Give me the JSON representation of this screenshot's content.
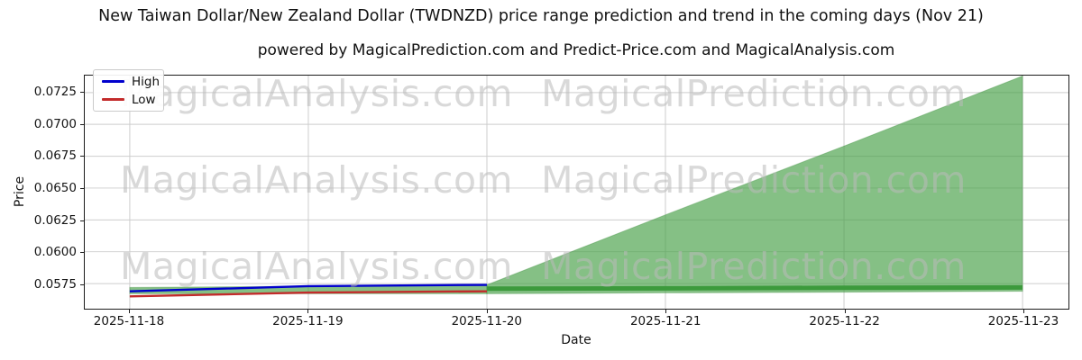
{
  "title": "New Taiwan Dollar/New Zealand Dollar (TWDNZD) price range prediction and trend in the coming days (Nov 21)",
  "subtitle": "powered by MagicalPrediction.com and Predict-Price.com and MagicalAnalysis.com",
  "watermarks": {
    "left_text": "MagicalAnalysis.com",
    "right_text": "MagicalPrediction.com",
    "rows": 3
  },
  "legend": {
    "items": [
      {
        "label": "High",
        "color": "#0000cd"
      },
      {
        "label": "Low",
        "color": "#c32b2b"
      }
    ]
  },
  "axes": {
    "x_label": "Date",
    "y_label": "Price",
    "x_ticks": [
      "2025-11-18",
      "2025-11-19",
      "2025-11-20",
      "2025-11-21",
      "2025-11-22",
      "2025-11-23"
    ],
    "y_ticks": [
      "0.0575",
      "0.0600",
      "0.0625",
      "0.0650",
      "0.0675",
      "0.0700",
      "0.0725"
    ]
  },
  "chart_data": {
    "type": "line",
    "title": "New Taiwan Dollar/New Zealand Dollar (TWDNZD) price range prediction and trend in the coming days (Nov 21)",
    "xlabel": "Date",
    "ylabel": "Price",
    "grid": true,
    "legend_position": "upper left",
    "x_categories": [
      "2025-11-18",
      "2025-11-19",
      "2025-11-20",
      "2025-11-21",
      "2025-11-22",
      "2025-11-23"
    ],
    "ylim": [
      0.05553,
      0.07383
    ],
    "series": [
      {
        "name": "High",
        "color": "#0000cd",
        "line_width": 2.4,
        "x": [
          "2025-11-18",
          "2025-11-19",
          "2025-11-20"
        ],
        "values": [
          0.0569,
          0.0573,
          0.0574
        ]
      },
      {
        "name": "Low",
        "color": "#c32b2b",
        "line_width": 2.4,
        "x": [
          "2025-11-18",
          "2025-11-19",
          "2025-11-20"
        ],
        "values": [
          0.0565,
          0.0568,
          0.0569
        ]
      },
      {
        "name": "Trend",
        "color": "#3c9a3c",
        "line_width": 5,
        "x": [
          "2025-11-20",
          "2025-11-21",
          "2025-11-22",
          "2025-11-23"
        ],
        "values": [
          0.0571,
          0.05713,
          0.05717,
          0.0572
        ]
      }
    ],
    "bands": [
      {
        "name": "historical-range",
        "fill_color": "rgba(70,160,70,0.66)",
        "x": [
          "2025-11-18",
          "2025-11-19",
          "2025-11-20"
        ],
        "upper": [
          0.0572,
          0.0573,
          0.0574
        ],
        "lower": [
          0.0567,
          0.0567,
          0.0567
        ]
      },
      {
        "name": "forecast-cone",
        "fill_color": "rgba(70,160,70,0.66)",
        "x": [
          "2025-11-20",
          "2025-11-21",
          "2025-11-22",
          "2025-11-23"
        ],
        "upper": [
          0.0574,
          0.0629,
          0.0683,
          0.0738
        ],
        "lower": [
          0.0567,
          0.05677,
          0.05683,
          0.0569
        ]
      }
    ]
  }
}
